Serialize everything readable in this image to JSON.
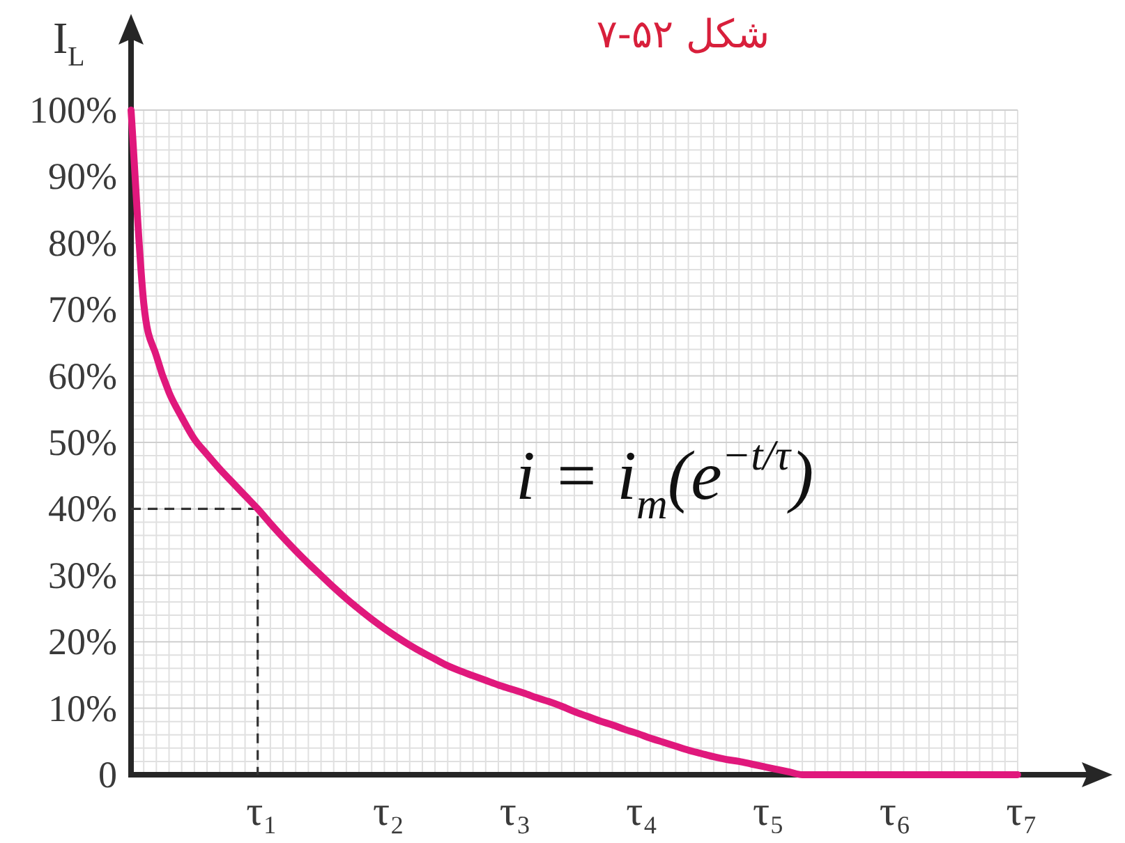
{
  "chart_data": {
    "type": "line",
    "title": "شکل ۵۲-۷",
    "ylabel": "I$_{L}$",
    "annotations": [
      "i = i$_{m}$(e$^{−t/τ}$)"
    ],
    "categories": [
      null,
      null,
      null,
      null,
      null,
      null,
      null,
      null,
      null,
      null,
      "τ₁",
      null,
      null,
      null,
      null,
      null,
      null,
      null,
      null,
      null,
      "τ₂",
      null,
      null,
      null,
      null,
      null,
      null,
      null,
      null,
      null,
      "τ₃",
      null,
      null,
      null,
      null,
      null,
      null,
      null,
      null,
      null,
      "τ₄",
      null,
      null,
      null,
      null,
      null,
      null,
      null,
      null,
      null,
      "τ₅",
      null,
      null,
      null,
      null,
      null,
      null,
      null,
      null,
      null,
      "τ₆",
      null,
      null,
      null,
      null,
      null,
      null,
      null,
      null,
      null,
      "τ₇"
    ],
    "ylim": [
      0,
      100
    ],
    "grid": true,
    "yticks": [
      {
        "value": 0,
        "label": "0"
      },
      {
        "value": 2,
        "label": null
      },
      {
        "value": 4,
        "label": null
      },
      {
        "value": 6,
        "label": null
      },
      {
        "value": 8,
        "label": null
      },
      {
        "value": 10,
        "label": "10%"
      },
      {
        "value": 12,
        "label": null
      },
      {
        "value": 14,
        "label": null
      },
      {
        "value": 16,
        "label": null
      },
      {
        "value": 18,
        "label": null
      },
      {
        "value": 20,
        "label": "20%"
      },
      {
        "value": 22,
        "label": null
      },
      {
        "value": 24,
        "label": null
      },
      {
        "value": 26,
        "label": null
      },
      {
        "value": 28,
        "label": null
      },
      {
        "value": 30,
        "label": "30%"
      },
      {
        "value": 32,
        "label": null
      },
      {
        "value": 34,
        "label": null
      },
      {
        "value": 36,
        "label": null
      },
      {
        "value": 38,
        "label": null
      },
      {
        "value": 40,
        "label": "40%"
      },
      {
        "value": 42,
        "label": null
      },
      {
        "value": 44,
        "label": null
      },
      {
        "value": 46,
        "label": null
      },
      {
        "value": 48,
        "label": null
      },
      {
        "value": 50,
        "label": "50%"
      },
      {
        "value": 52,
        "label": null
      },
      {
        "value": 54,
        "label": null
      },
      {
        "value": 56,
        "label": null
      },
      {
        "value": 58,
        "label": null
      },
      {
        "value": 60,
        "label": "60%"
      },
      {
        "value": 62,
        "label": null
      },
      {
        "value": 64,
        "label": null
      },
      {
        "value": 66,
        "label": null
      },
      {
        "value": 68,
        "label": null
      },
      {
        "value": 70,
        "label": "70%"
      },
      {
        "value": 72,
        "label": null
      },
      {
        "value": 74,
        "label": null
      },
      {
        "value": 76,
        "label": null
      },
      {
        "value": 78,
        "label": null
      },
      {
        "value": 80,
        "label": "80%"
      },
      {
        "value": 82,
        "label": null
      },
      {
        "value": 84,
        "label": null
      },
      {
        "value": 86,
        "label": null
      },
      {
        "value": 88,
        "label": null
      },
      {
        "value": 90,
        "label": "90%"
      },
      {
        "value": 92,
        "label": null
      },
      {
        "value": 94,
        "label": null
      },
      {
        "value": 96,
        "label": null
      },
      {
        "value": 98,
        "label": null
      },
      {
        "value": 100,
        "label": "100%"
      }
    ],
    "series": [
      {
        "type": "step",
        "color": "#333333",
        "line_style": "dashed",
        "values": [
          40,
          40,
          40,
          40,
          40,
          40,
          40,
          40,
          40,
          40,
          0,
          null,
          null,
          null,
          null,
          null,
          null,
          null,
          null,
          null,
          null,
          null,
          null,
          null,
          null,
          null,
          null,
          null,
          null,
          null,
          null,
          null,
          null,
          null,
          null,
          null,
          null,
          null,
          null,
          null,
          null,
          null,
          null,
          null,
          null,
          null,
          null,
          null,
          null,
          null,
          null,
          null,
          null,
          null,
          null,
          null,
          null,
          null,
          null,
          null,
          null,
          null,
          null,
          null,
          null,
          null,
          null,
          null,
          null,
          null,
          null
        ]
      },
      {
        "color": "#e0187c",
        "values": [
          100,
          71,
          63,
          57.5,
          53.8,
          50.5,
          48.2,
          46,
          44,
          42,
          40,
          37.8,
          35.7,
          33.7,
          31.8,
          30,
          28.2,
          26.5,
          24.9,
          23.4,
          22,
          20.7,
          19.5,
          18.4,
          17.4,
          16.4,
          15.6,
          14.9,
          14.2,
          13.5,
          12.9,
          12.3,
          11.6,
          11,
          10.3,
          9.5,
          8.8,
          8.1,
          7.5,
          6.8,
          6.2,
          5.5,
          4.9,
          4.3,
          3.7,
          3.2,
          2.7,
          2.3,
          2,
          1.6,
          1.2,
          0.8,
          0.4,
          0,
          0,
          0,
          0,
          0,
          0,
          0,
          0,
          0,
          0,
          0,
          0,
          0,
          0,
          0,
          0,
          0,
          0
        ]
      }
    ]
  }
}
